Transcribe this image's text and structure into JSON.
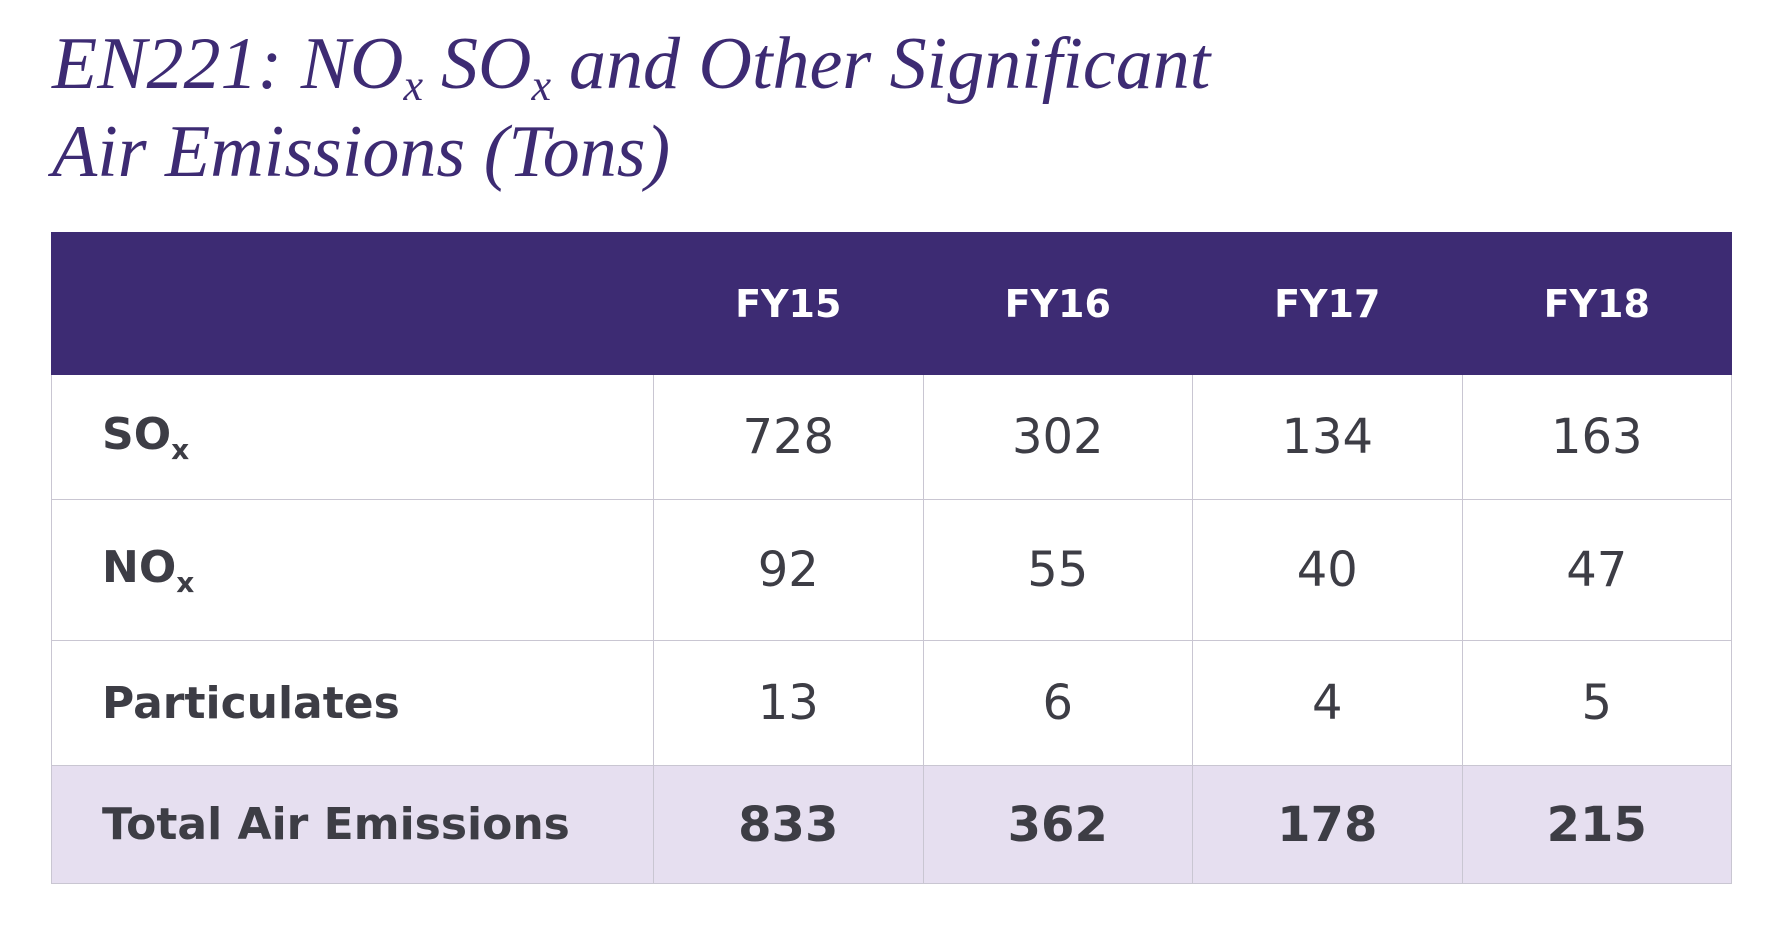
{
  "title": {
    "line1": [
      "EN221: NO",
      "x",
      "SO",
      "x",
      "and Other Significant"
    ],
    "line2": "Air Emissions (Tons)"
  },
  "table": {
    "header": [
      "FY15",
      "FY16",
      "FY17",
      "FY18"
    ],
    "rows": [
      {
        "label": "SO",
        "sub": "x",
        "values": [
          728,
          302,
          134,
          163
        ]
      },
      {
        "label": "NO",
        "sub": "x",
        "values": [
          92,
          55,
          40,
          47
        ]
      },
      {
        "label": "Particulates",
        "values": [
          13,
          6,
          4,
          5
        ]
      }
    ],
    "total": {
      "label": "Total Air Emissions",
      "values": [
        833,
        362,
        178,
        215
      ]
    }
  }
}
